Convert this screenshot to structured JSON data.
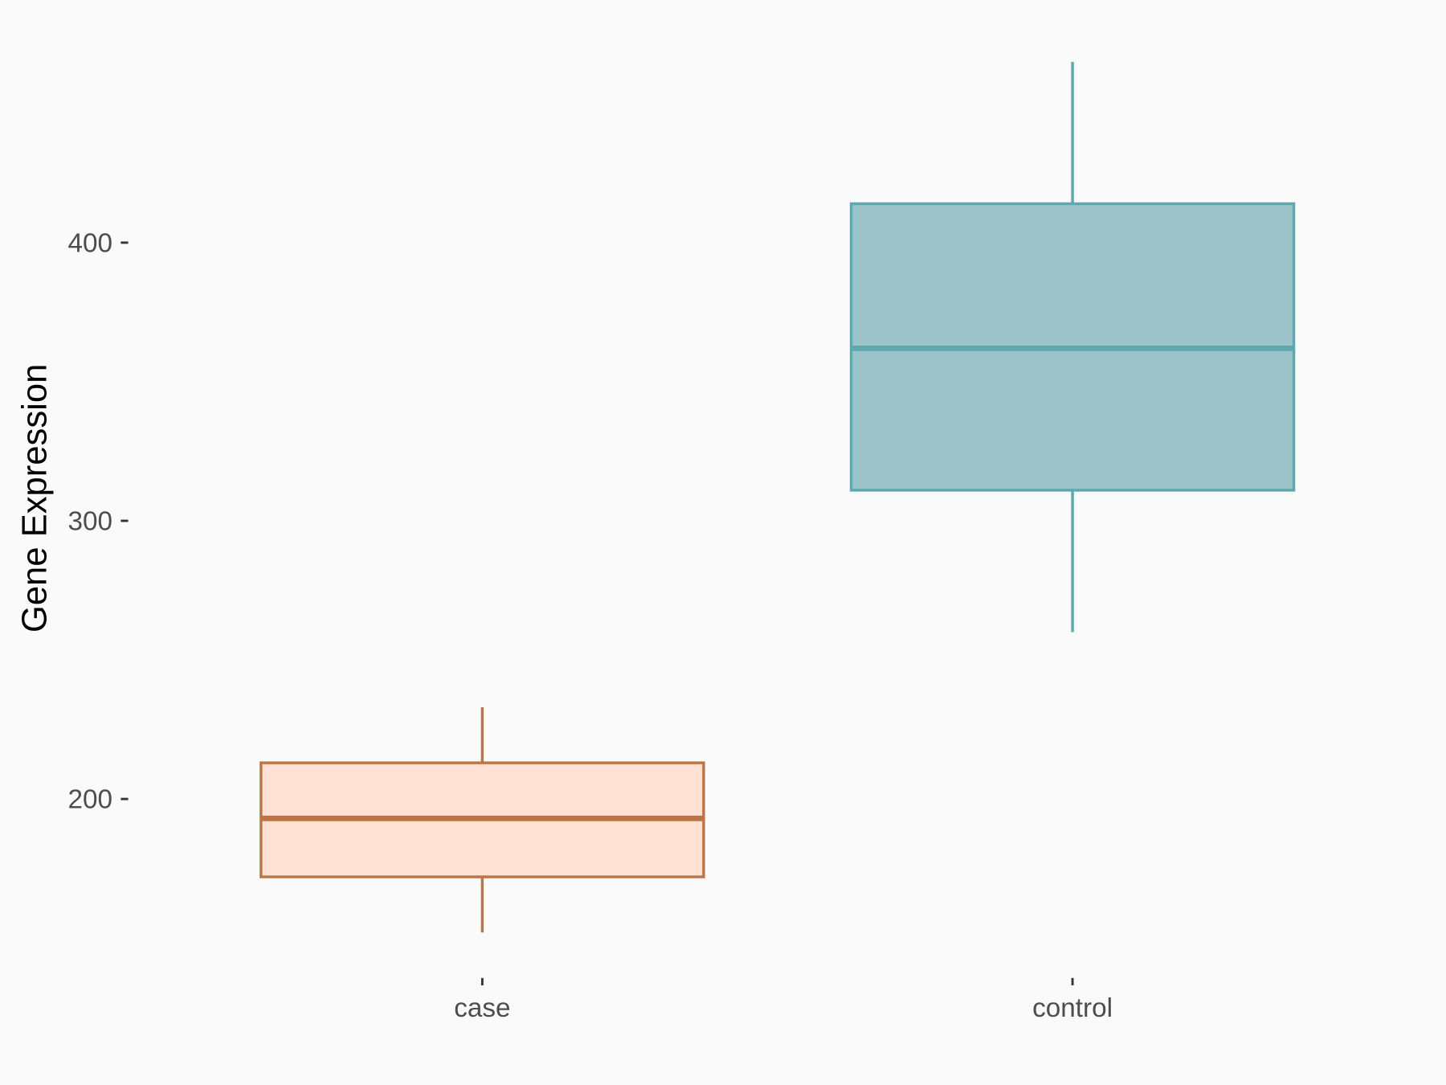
{
  "chart_data": {
    "type": "boxplot",
    "title": "",
    "xlabel": "",
    "ylabel": "Gene Expression",
    "ylim": [
      136,
      481
    ],
    "yticks": [
      200,
      300,
      400
    ],
    "grid": false,
    "legend": "none",
    "categories": [
      "case",
      "control"
    ],
    "boxes": [
      {
        "category": "case",
        "whisker_low": 152,
        "q1": 172,
        "median": 193,
        "q3": 213,
        "whisker_high": 233,
        "fill": "#ffe1d6",
        "stroke": "#bf7446"
      },
      {
        "category": "control",
        "whisker_low": 260,
        "q1": 311,
        "median": 362,
        "q3": 414,
        "whisker_high": 465,
        "fill": "#9cc4c8",
        "stroke": "#5fa8ad"
      }
    ],
    "background": "#fafafa"
  }
}
